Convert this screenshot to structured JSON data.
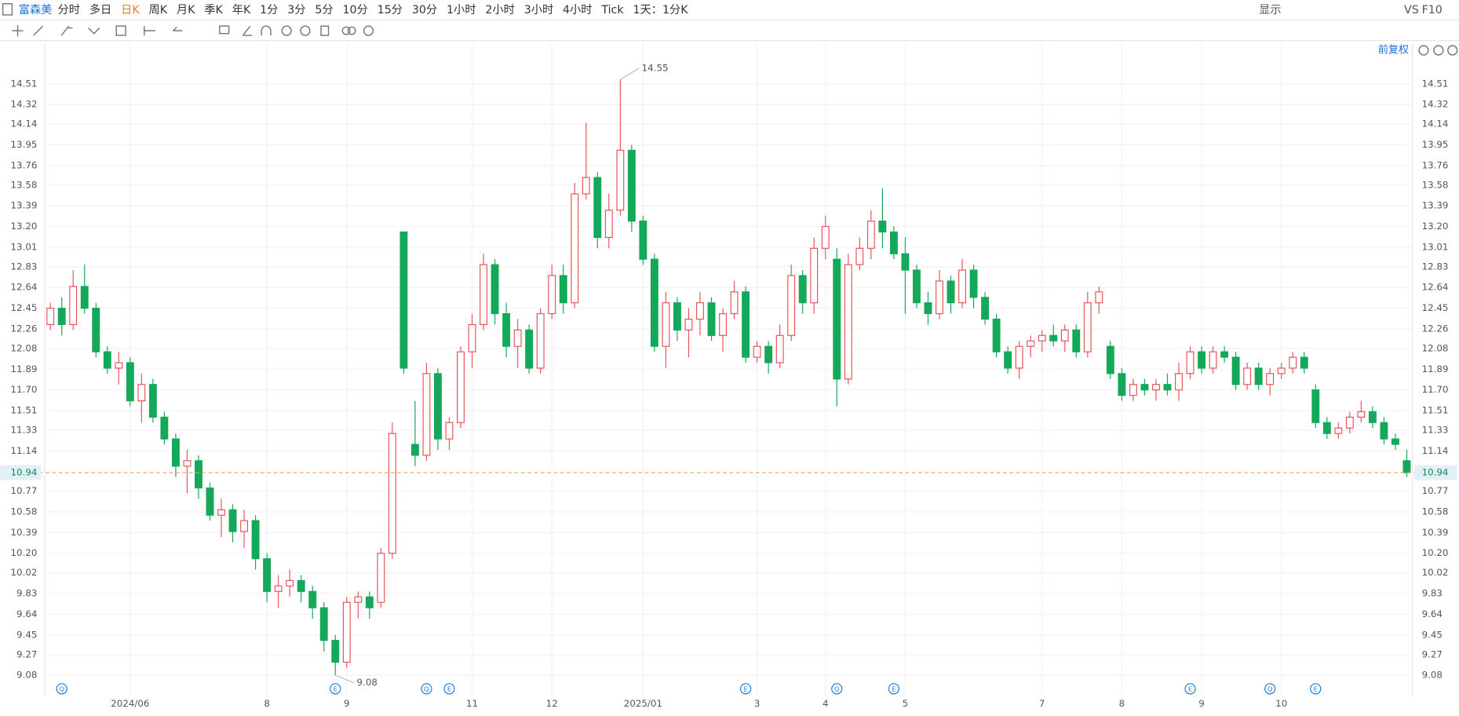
{
  "toolbar": {
    "symbol": "富森美",
    "periods": [
      "分时",
      "多日",
      "日K",
      "周K",
      "月K",
      "季K",
      "年K",
      "1分",
      "3分",
      "5分",
      "10分",
      "15分",
      "30分",
      "1小时",
      "2小时",
      "3小时",
      "4小时",
      "Tick",
      "1天：1分K"
    ],
    "active": "日K",
    "right": [
      "显示",
      "VS",
      "F10"
    ],
    "adjust": "前复权"
  },
  "chart_data": {
    "type": "candlestick",
    "categories": [
      null,
      null,
      null,
      null,
      null,
      null,
      null,
      "2024/06",
      null,
      null,
      null,
      null,
      null,
      null,
      null,
      null,
      null,
      null,
      null,
      "8",
      null,
      null,
      null,
      null,
      null,
      null,
      "9",
      null,
      null,
      null,
      null,
      null,
      null,
      null,
      null,
      null,
      null,
      "11",
      null,
      null,
      null,
      null,
      null,
      null,
      "12",
      null,
      null,
      null,
      null,
      null,
      null,
      null,
      "2025/01",
      null,
      null,
      null,
      null,
      null,
      null,
      null,
      null,
      null,
      "3",
      null,
      null,
      null,
      null,
      null,
      "4",
      null,
      null,
      null,
      null,
      null,
      null,
      "5",
      null,
      null,
      null,
      null,
      null,
      null,
      null,
      null,
      null,
      null,
      null,
      "7",
      null,
      null,
      null,
      null,
      null,
      null,
      "8",
      null,
      null,
      null,
      null,
      null,
      null,
      "9",
      null,
      null,
      null,
      null,
      null,
      null,
      "10",
      null,
      null,
      null,
      null,
      null,
      null,
      null,
      null,
      null,
      null,
      null
    ],
    "candles": [
      [
        12.3,
        12.5,
        12.25,
        12.45
      ],
      [
        12.45,
        12.55,
        12.2,
        12.3
      ],
      [
        12.3,
        12.8,
        12.25,
        12.65
      ],
      [
        12.65,
        12.85,
        12.4,
        12.45
      ],
      [
        12.45,
        12.5,
        12.0,
        12.05
      ],
      [
        12.05,
        12.1,
        11.85,
        11.9
      ],
      [
        11.9,
        12.05,
        11.75,
        11.95
      ],
      [
        11.95,
        12.0,
        11.55,
        11.6
      ],
      [
        11.6,
        11.85,
        11.4,
        11.75
      ],
      [
        11.75,
        11.8,
        11.4,
        11.45
      ],
      [
        11.45,
        11.5,
        11.2,
        11.25
      ],
      [
        11.25,
        11.3,
        10.9,
        11.0
      ],
      [
        11.0,
        11.15,
        10.75,
        11.05
      ],
      [
        11.05,
        11.1,
        10.7,
        10.8
      ],
      [
        10.8,
        10.85,
        10.5,
        10.55
      ],
      [
        10.55,
        10.7,
        10.35,
        10.6
      ],
      [
        10.6,
        10.65,
        10.3,
        10.4
      ],
      [
        10.4,
        10.6,
        10.25,
        10.5
      ],
      [
        10.5,
        10.55,
        10.05,
        10.15
      ],
      [
        10.15,
        10.2,
        9.75,
        9.85
      ],
      [
        9.85,
        10.0,
        9.7,
        9.9
      ],
      [
        9.9,
        10.05,
        9.8,
        9.95
      ],
      [
        9.95,
        10.0,
        9.75,
        9.85
      ],
      [
        9.85,
        9.9,
        9.6,
        9.7
      ],
      [
        9.7,
        9.75,
        9.3,
        9.4
      ],
      [
        9.4,
        9.45,
        9.08,
        9.2
      ],
      [
        9.2,
        9.8,
        9.15,
        9.75
      ],
      [
        9.75,
        9.85,
        9.6,
        9.8
      ],
      [
        9.8,
        9.85,
        9.6,
        9.7
      ],
      [
        9.75,
        10.25,
        9.7,
        10.2
      ],
      [
        10.2,
        11.4,
        10.15,
        11.3
      ],
      [
        13.15,
        13.15,
        11.85,
        11.9
      ],
      [
        11.2,
        11.6,
        11.0,
        11.1
      ],
      [
        11.1,
        11.95,
        11.05,
        11.85
      ],
      [
        11.85,
        11.9,
        11.15,
        11.25
      ],
      [
        11.25,
        11.45,
        11.15,
        11.4
      ],
      [
        11.4,
        12.1,
        11.35,
        12.05
      ],
      [
        12.05,
        12.4,
        11.9,
        12.3
      ],
      [
        12.3,
        12.95,
        12.25,
        12.85
      ],
      [
        12.85,
        12.9,
        12.3,
        12.4
      ],
      [
        12.4,
        12.5,
        12.0,
        12.1
      ],
      [
        12.1,
        12.35,
        11.9,
        12.25
      ],
      [
        12.25,
        12.3,
        11.85,
        11.9
      ],
      [
        11.9,
        12.45,
        11.85,
        12.4
      ],
      [
        12.4,
        12.85,
        12.35,
        12.75
      ],
      [
        12.75,
        12.85,
        12.4,
        12.5
      ],
      [
        12.5,
        13.6,
        12.45,
        13.5
      ],
      [
        13.5,
        14.15,
        13.45,
        13.65
      ],
      [
        13.65,
        13.7,
        13.0,
        13.1
      ],
      [
        13.1,
        13.5,
        13.0,
        13.35
      ],
      [
        13.35,
        14.55,
        13.3,
        13.9
      ],
      [
        13.9,
        13.95,
        13.15,
        13.25
      ],
      [
        13.25,
        13.3,
        12.85,
        12.9
      ],
      [
        12.9,
        12.95,
        12.05,
        12.1
      ],
      [
        12.1,
        12.6,
        11.9,
        12.5
      ],
      [
        12.5,
        12.55,
        12.15,
        12.25
      ],
      [
        12.25,
        12.45,
        12.0,
        12.35
      ],
      [
        12.35,
        12.6,
        12.2,
        12.5
      ],
      [
        12.5,
        12.55,
        12.15,
        12.2
      ],
      [
        12.2,
        12.45,
        12.05,
        12.4
      ],
      [
        12.4,
        12.7,
        12.35,
        12.6
      ],
      [
        12.6,
        12.65,
        11.95,
        12.0
      ],
      [
        12.0,
        12.15,
        11.95,
        12.1
      ],
      [
        12.1,
        12.15,
        11.85,
        11.95
      ],
      [
        11.95,
        12.3,
        11.9,
        12.2
      ],
      [
        12.2,
        12.85,
        12.15,
        12.75
      ],
      [
        12.75,
        12.8,
        12.4,
        12.5
      ],
      [
        12.5,
        13.1,
        12.4,
        13.0
      ],
      [
        13.0,
        13.3,
        12.9,
        13.2
      ],
      [
        12.9,
        13.0,
        11.55,
        11.8
      ],
      [
        11.8,
        12.95,
        11.75,
        12.85
      ],
      [
        12.85,
        13.1,
        12.8,
        13.0
      ],
      [
        13.0,
        13.35,
        12.9,
        13.25
      ],
      [
        13.25,
        13.55,
        13.0,
        13.15
      ],
      [
        13.15,
        13.2,
        12.9,
        12.95
      ],
      [
        12.95,
        13.1,
        12.4,
        12.8
      ],
      [
        12.8,
        12.85,
        12.45,
        12.5
      ],
      [
        12.5,
        12.6,
        12.3,
        12.4
      ],
      [
        12.4,
        12.8,
        12.35,
        12.7
      ],
      [
        12.7,
        12.75,
        12.4,
        12.5
      ],
      [
        12.5,
        12.9,
        12.45,
        12.8
      ],
      [
        12.8,
        12.85,
        12.45,
        12.55
      ],
      [
        12.55,
        12.6,
        12.3,
        12.35
      ],
      [
        12.35,
        12.4,
        12.0,
        12.05
      ],
      [
        12.05,
        12.1,
        11.85,
        11.9
      ],
      [
        11.9,
        12.15,
        11.8,
        12.1
      ],
      [
        12.1,
        12.2,
        12.0,
        12.15
      ],
      [
        12.15,
        12.25,
        12.05,
        12.2
      ],
      [
        12.2,
        12.3,
        12.1,
        12.15
      ],
      [
        12.15,
        12.3,
        12.05,
        12.25
      ],
      [
        12.25,
        12.3,
        12.0,
        12.05
      ],
      [
        12.05,
        12.6,
        12.0,
        12.5
      ],
      [
        12.5,
        12.65,
        12.4,
        12.6
      ],
      [
        12.1,
        12.15,
        11.8,
        11.85
      ],
      [
        11.85,
        11.9,
        11.6,
        11.65
      ],
      [
        11.65,
        11.8,
        11.6,
        11.75
      ],
      [
        11.75,
        11.8,
        11.65,
        11.7
      ],
      [
        11.7,
        11.8,
        11.6,
        11.75
      ],
      [
        11.75,
        11.85,
        11.65,
        11.7
      ],
      [
        11.7,
        11.95,
        11.6,
        11.85
      ],
      [
        11.85,
        12.1,
        11.8,
        12.05
      ],
      [
        12.05,
        12.1,
        11.85,
        11.9
      ],
      [
        11.9,
        12.1,
        11.85,
        12.05
      ],
      [
        12.05,
        12.1,
        11.95,
        12.0
      ],
      [
        12.0,
        12.05,
        11.7,
        11.75
      ],
      [
        11.75,
        11.95,
        11.7,
        11.9
      ],
      [
        11.9,
        11.95,
        11.7,
        11.75
      ],
      [
        11.75,
        11.9,
        11.65,
        11.85
      ],
      [
        11.85,
        11.95,
        11.8,
        11.9
      ],
      [
        11.9,
        12.05,
        11.85,
        12.0
      ],
      [
        12.0,
        12.05,
        11.85,
        11.9
      ],
      [
        11.7,
        11.75,
        11.35,
        11.4
      ],
      [
        11.4,
        11.45,
        11.25,
        11.3
      ],
      [
        11.3,
        11.4,
        11.25,
        11.35
      ],
      [
        11.35,
        11.5,
        11.3,
        11.45
      ],
      [
        11.45,
        11.6,
        11.4,
        11.5
      ],
      [
        11.5,
        11.55,
        11.35,
        11.4
      ],
      [
        11.4,
        11.45,
        11.2,
        11.25
      ],
      [
        11.25,
        11.3,
        11.15,
        11.2
      ],
      [
        11.05,
        11.15,
        10.9,
        10.94
      ]
    ],
    "up_color": "#e8545a",
    "down_color": "#14a85a",
    "ylim": [
      8.99,
      14.75
    ],
    "yticks": [
      9.08,
      9.27,
      9.45,
      9.64,
      9.83,
      10.02,
      {
        "value": 10.2,
        "label": "10.20"
      },
      10.39,
      10.58,
      10.77,
      11.14,
      11.33,
      11.51,
      {
        "value": 11.7,
        "label": "11.70"
      },
      11.89,
      12.08,
      12.26,
      12.45,
      12.64,
      12.83,
      13.01,
      {
        "value": 13.2,
        "label": "13.20"
      },
      13.39,
      13.58,
      13.76,
      13.95,
      14.14,
      14.32,
      14.51
    ],
    "grid": true,
    "last_price": 10.94,
    "annotations": [
      {
        "label": "14.55",
        "value": 14.55
      },
      {
        "label": "9.08",
        "value": 9.08
      }
    ],
    "events": [
      {
        "label": "Q",
        "at": 1
      },
      {
        "label": "E",
        "at": 25
      },
      {
        "label": "Q",
        "at": 33
      },
      {
        "label": "E",
        "at": 35
      },
      {
        "label": "E",
        "at": 61
      },
      {
        "label": "Q",
        "at": 69
      },
      {
        "label": "E",
        "at": 74
      },
      {
        "label": "E",
        "at": 100
      },
      {
        "label": "Q",
        "at": 107
      },
      {
        "label": "E",
        "at": 111
      }
    ]
  }
}
